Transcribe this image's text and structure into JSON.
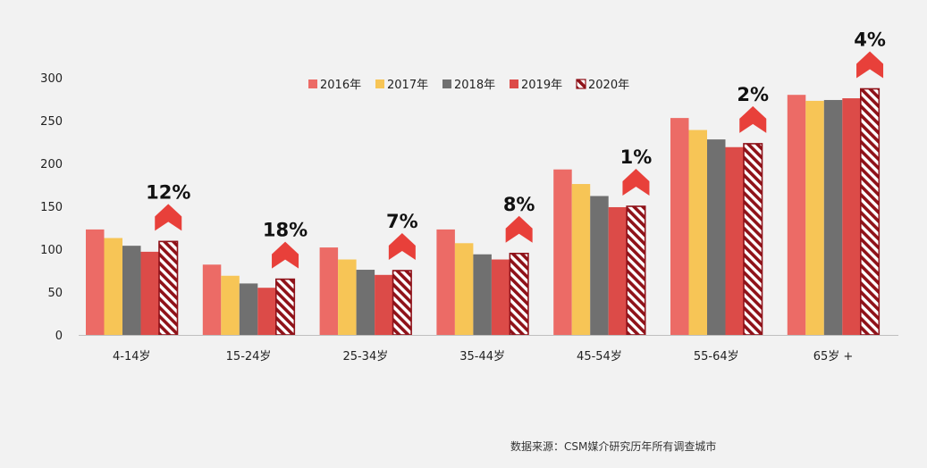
{
  "chart_data": {
    "type": "bar",
    "categories": [
      "4-14岁",
      "15-24岁",
      "25-34岁",
      "35-44岁",
      "45-54岁",
      "55-64岁",
      "65岁 +"
    ],
    "series": [
      {
        "name": "2016年",
        "color": "#ec6b66",
        "pattern": "solid",
        "values": [
          123,
          82,
          102,
          123,
          193,
          253,
          280
        ]
      },
      {
        "name": "2017年",
        "color": "#f7c556",
        "pattern": "solid",
        "values": [
          113,
          69,
          88,
          107,
          176,
          239,
          273
        ]
      },
      {
        "name": "2018年",
        "color": "#707070",
        "pattern": "solid",
        "values": [
          104,
          60,
          76,
          94,
          162,
          228,
          274
        ]
      },
      {
        "name": "2019年",
        "color": "#dc4b48",
        "pattern": "solid",
        "values": [
          97,
          55,
          70,
          88,
          149,
          219,
          276
        ]
      },
      {
        "name": "2020年",
        "color": "#8f1219",
        "pattern": "hatched",
        "values": [
          109,
          65,
          75,
          95,
          150,
          223,
          287
        ]
      }
    ],
    "annotations": [
      "12%",
      "18%",
      "7%",
      "8%",
      "1%",
      "2%",
      "4%"
    ],
    "annotation_arrow_color": "#e8403a",
    "ylim": [
      0,
      300
    ],
    "yticks": [
      0,
      50,
      100,
      150,
      200,
      250,
      300
    ],
    "legend_position": "top-center",
    "grid": false
  },
  "source_note": "数据来源：CSM媒介研究历年所有调查城市"
}
